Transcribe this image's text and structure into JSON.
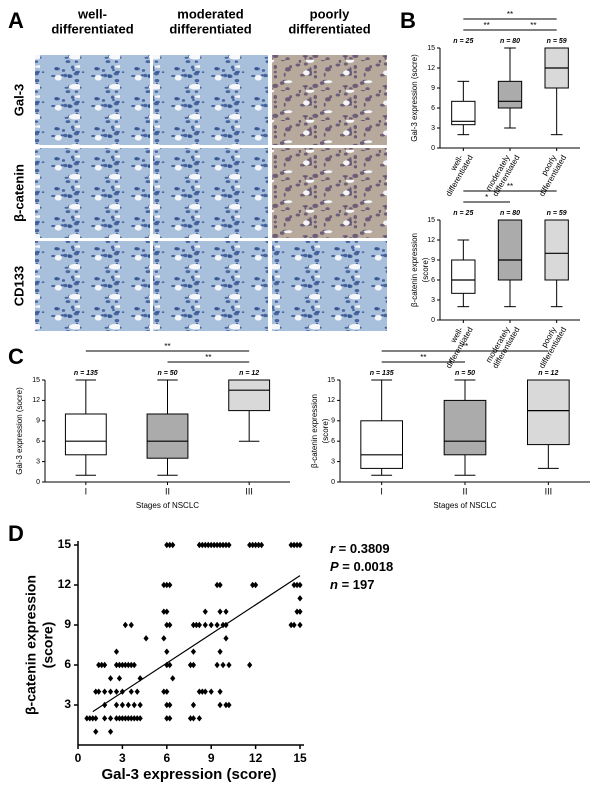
{
  "panel_a": {
    "label": "A",
    "columns": [
      [
        "well-",
        "differentiated"
      ],
      [
        "moderated",
        "differentiated"
      ],
      [
        "poorly",
        "differentiated"
      ]
    ],
    "rows": [
      "Gal-3",
      "β-catenin",
      "CD133"
    ]
  },
  "chart_data": [
    {
      "type": "box",
      "panel": "B",
      "ylabel": "Gal-3 expression (socre)",
      "categories": [
        [
          "well-",
          "differentiated"
        ],
        [
          "moderately",
          "differentiated"
        ],
        [
          "poorly",
          "differentiated"
        ]
      ],
      "n_labels": [
        "n = 25",
        "n = 80",
        "n = 59"
      ],
      "boxes": [
        {
          "min": 2,
          "q1": 3.5,
          "median": 4,
          "q3": 7,
          "max": 10,
          "color": "#ffffff"
        },
        {
          "min": 3,
          "q1": 6,
          "median": 7,
          "q3": 10,
          "max": 15,
          "color": "#ababab"
        },
        {
          "min": 2,
          "q1": 9,
          "median": 12,
          "q3": 15,
          "max": 15,
          "color": "#d9d9d9"
        }
      ],
      "significance": [
        {
          "from": 0,
          "to": 1,
          "label": "**"
        },
        {
          "from": 1,
          "to": 2,
          "label": "**"
        },
        {
          "from": 0,
          "to": 2,
          "label": "**"
        }
      ],
      "ylim": [
        0,
        15
      ],
      "yticks": [
        0,
        3,
        6,
        9,
        12,
        15
      ]
    },
    {
      "type": "box",
      "ylabel": [
        "β-catenin expression",
        "(score)"
      ],
      "categories": [
        [
          "well-",
          "differentiated"
        ],
        [
          "moderately",
          "differentiated"
        ],
        [
          "poorly",
          "differentiated"
        ]
      ],
      "n_labels": [
        "n = 25",
        "n = 80",
        "n = 59"
      ],
      "boxes": [
        {
          "min": 2,
          "q1": 4,
          "median": 6,
          "q3": 9,
          "max": 12,
          "color": "#ffffff"
        },
        {
          "min": 2,
          "q1": 6,
          "median": 9,
          "q3": 15,
          "max": 15,
          "color": "#ababab"
        },
        {
          "min": 2,
          "q1": 6,
          "median": 10,
          "q3": 15,
          "max": 15,
          "color": "#d9d9d9"
        }
      ],
      "significance": [
        {
          "from": 0,
          "to": 1,
          "label": "*"
        },
        {
          "from": 0,
          "to": 2,
          "label": "**"
        }
      ],
      "ylim": [
        0,
        15
      ],
      "yticks": [
        0,
        3,
        6,
        9,
        12,
        15
      ]
    },
    {
      "type": "box",
      "panel": "C",
      "ylabel": "Gal-3 expression (socre)",
      "xlabel": "Stages of NSCLC",
      "categories": [
        "I",
        "II",
        "III"
      ],
      "n_labels": [
        "n = 135",
        "n = 50",
        "n = 12"
      ],
      "boxes": [
        {
          "min": 1,
          "q1": 4,
          "median": 6,
          "q3": 10,
          "max": 15,
          "color": "#ffffff"
        },
        {
          "min": 1,
          "q1": 3.5,
          "median": 6,
          "q3": 10,
          "max": 15,
          "color": "#ababab"
        },
        {
          "min": 6,
          "q1": 10.5,
          "median": 13.5,
          "q3": 15,
          "max": 15,
          "color": "#d9d9d9"
        }
      ],
      "significance": [
        {
          "from": 1,
          "to": 2,
          "label": "**"
        },
        {
          "from": 0,
          "to": 2,
          "label": "**"
        }
      ],
      "ylim": [
        0,
        15
      ],
      "yticks": [
        0,
        3,
        6,
        9,
        12,
        15
      ]
    },
    {
      "type": "box",
      "ylabel": [
        "β-catenin expression",
        "(score)"
      ],
      "xlabel": "Stages of NSCLC",
      "categories": [
        "I",
        "II",
        "III"
      ],
      "n_labels": [
        "n = 135",
        "n = 50",
        "n = 12"
      ],
      "boxes": [
        {
          "min": 1,
          "q1": 2,
          "median": 4,
          "q3": 9,
          "max": 15,
          "color": "#ffffff"
        },
        {
          "min": 1,
          "q1": 4,
          "median": 6,
          "q3": 12,
          "max": 15,
          "color": "#ababab"
        },
        {
          "min": 2,
          "q1": 5.5,
          "median": 10.5,
          "q3": 15,
          "max": 15,
          "color": "#d9d9d9"
        }
      ],
      "significance": [
        {
          "from": 0,
          "to": 1,
          "label": "**"
        },
        {
          "from": 0,
          "to": 2,
          "label": "**"
        }
      ],
      "ylim": [
        0,
        15
      ],
      "yticks": [
        0,
        3,
        6,
        9,
        12,
        15
      ]
    },
    {
      "type": "scatter",
      "panel": "D",
      "xlabel": "Gal-3 expression (score)",
      "ylabel": [
        "β-catenin expression",
        "(score)"
      ],
      "xlim": [
        0,
        15
      ],
      "ylim": [
        0,
        15
      ],
      "xticks": [
        0,
        3,
        6,
        9,
        12,
        15
      ],
      "yticks": [
        3,
        6,
        9,
        12,
        15
      ],
      "color": "#000000",
      "stats": [
        {
          "symbol": "r",
          "text": " = 0.3809"
        },
        {
          "symbol": "P",
          "text": " = 0.0018"
        },
        {
          "symbol": "n",
          "text": " = 197"
        }
      ],
      "fit": {
        "x": [
          1,
          15
        ],
        "y": [
          2.5,
          12.7
        ]
      },
      "x": [
        6,
        6.2,
        6.4,
        8.2,
        8.4,
        8.6,
        8.8,
        9,
        9.2,
        9.4,
        9.6,
        9.8,
        10,
        10.2,
        11.6,
        11.8,
        12,
        12.2,
        12.4,
        14.4,
        14.6,
        14.8,
        15,
        5.8,
        6,
        6.2,
        9.4,
        9.6,
        11.8,
        12,
        14.6,
        14.8,
        15,
        15,
        5.8,
        6,
        8.6,
        9.6,
        10,
        14.8,
        15,
        3.2,
        3.6,
        6,
        6.2,
        7.8,
        8,
        8.2,
        8.6,
        9,
        9.4,
        9.8,
        10,
        14.4,
        14.6,
        15,
        4.6,
        5.8,
        10,
        2.6,
        6,
        7.8,
        9.6,
        1.4,
        1.6,
        1.8,
        2.6,
        2.8,
        3,
        3.2,
        3.4,
        3.6,
        3.8,
        6,
        6.2,
        7.6,
        7.8,
        9.4,
        9.8,
        10.2,
        11.6,
        2.2,
        2.8,
        4.2,
        6.4,
        1.2,
        1.4,
        1.8,
        2.2,
        2.6,
        3,
        3.6,
        4,
        5.8,
        6,
        8.2,
        8.4,
        8.6,
        9,
        9.6,
        1.8,
        2.6,
        3,
        3.4,
        3.8,
        4.2,
        6,
        6.2,
        7.8,
        9.6,
        10,
        10.2,
        0.6,
        0.8,
        1,
        1.2,
        1.8,
        2.2,
        2.6,
        2.8,
        3,
        3.2,
        3.4,
        3.6,
        3.8,
        4,
        4.2,
        6,
        6.2,
        7.6,
        7.8,
        8.2,
        1.2,
        2.2
      ],
      "y": [
        15,
        15,
        15,
        15,
        15,
        15,
        15,
        15,
        15,
        15,
        15,
        15,
        15,
        15,
        15,
        15,
        15,
        15,
        15,
        15,
        15,
        15,
        15,
        12,
        12,
        12,
        12,
        12,
        12,
        12,
        12,
        12,
        12,
        11,
        10,
        10,
        10,
        10,
        10,
        10,
        10,
        9,
        9,
        9,
        9,
        9,
        9,
        9,
        9,
        9,
        9,
        9,
        9,
        9,
        9,
        9,
        8,
        8,
        8,
        7,
        7,
        7,
        7,
        6,
        6,
        6,
        6,
        6,
        6,
        6,
        6,
        6,
        6,
        6,
        6,
        6,
        6,
        6,
        6,
        6,
        6,
        5,
        5,
        5,
        5,
        4,
        4,
        4,
        4,
        4,
        4,
        4,
        4,
        4,
        4,
        4,
        4,
        4,
        4,
        4,
        3,
        3,
        3,
        3,
        3,
        3,
        3,
        3,
        3,
        3,
        3,
        3,
        2,
        2,
        2,
        2,
        2,
        2,
        2,
        2,
        2,
        2,
        2,
        2,
        2,
        2,
        2,
        2,
        2,
        2,
        2,
        2,
        1,
        1
      ]
    }
  ]
}
